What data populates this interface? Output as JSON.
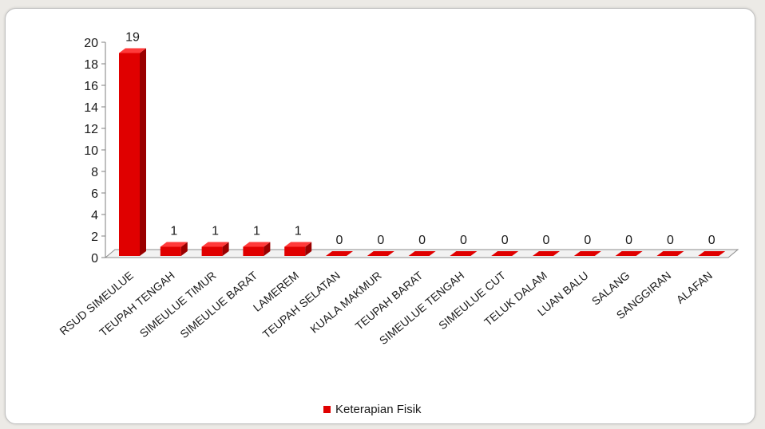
{
  "chart_data": {
    "type": "bar",
    "categories": [
      "RSUD SIMEULUE",
      "TEUPAH TENGAH",
      "SIMEULUE TIMUR",
      "SIMEULUE BARAT",
      "LAMEREM",
      "TEUPAH SELATAN",
      "KUALA MAKMUR",
      "TEUPAH BARAT",
      "SIMEULUE TENGAH",
      "SIMEULUE CUT",
      "TELUK DALAM",
      "LUAN BALU",
      "SALANG",
      "SANGGIRAN",
      "ALAFAN"
    ],
    "series": [
      {
        "name": "Keterapian Fisik",
        "color": "#e00000",
        "values": [
          19,
          1,
          1,
          1,
          1,
          0,
          0,
          0,
          0,
          0,
          0,
          0,
          0,
          0,
          0
        ]
      }
    ],
    "data_labels": [
      "19",
      "1",
      "1",
      "1",
      "1",
      "0",
      "0",
      "0",
      "0",
      "0",
      "0",
      "0",
      "0",
      "0",
      "0"
    ],
    "ylim": [
      0,
      20
    ],
    "yticks": [
      "0",
      "2",
      "4",
      "6",
      "8",
      "10",
      "12",
      "14",
      "16",
      "18",
      "20"
    ],
    "title": "",
    "xlabel": "",
    "ylabel": "",
    "grid": false,
    "legend_position": "bottom",
    "style": "3d-column"
  }
}
